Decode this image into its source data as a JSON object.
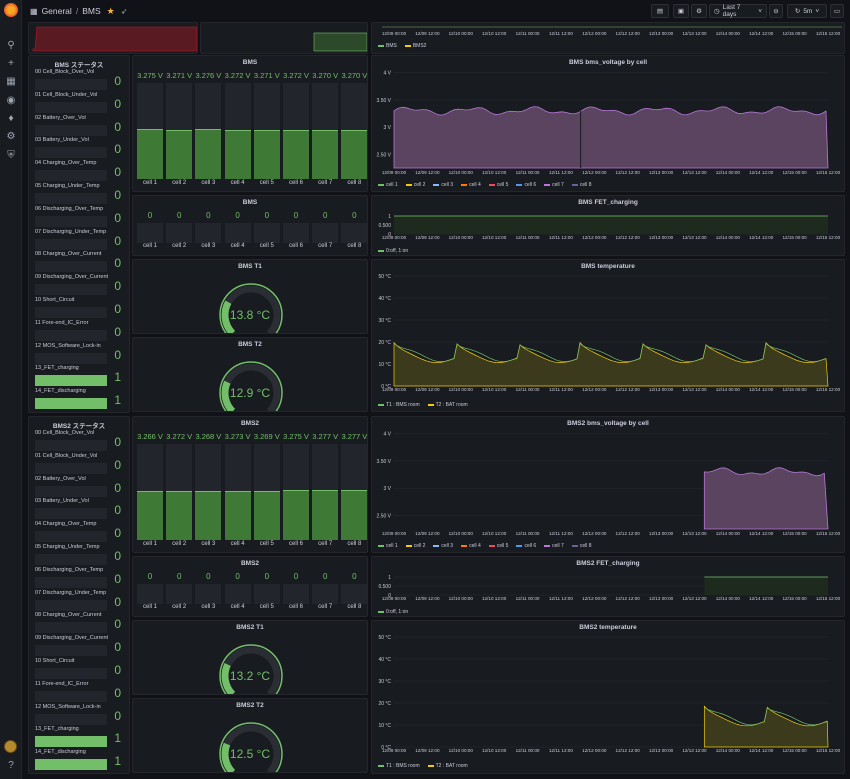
{
  "breadcrumb": {
    "folder": "General",
    "dashboard": "BMS"
  },
  "toolbar": {
    "time_range": "Last 7 days",
    "refresh": "5m"
  },
  "status_labels": [
    "00 Cell_Block_Over_Vol",
    "01 Cell_Block_Under_Vol",
    "02 Battery_Over_Vol",
    "03 Battery_Under_Vol",
    "04 Charging_Over_Temp",
    "05 Charging_Under_Temp",
    "06 Discharging_Over_Temp",
    "07 Discharging_Under_Temp",
    "08 Charging_Over_Current",
    "09 Discharging_Over_Current",
    "10 Short_Circuit",
    "11 Fore-end_IC_Error",
    "12 MOS_Software_Lock-in",
    "13_FET_charging",
    "14_FET_discharging"
  ],
  "bms1": {
    "status_title": "BMS ステータス",
    "status_values": [
      "0",
      "0",
      "0",
      "0",
      "0",
      "0",
      "0",
      "0",
      "0",
      "0",
      "0",
      "0",
      "0",
      "1",
      "1"
    ],
    "cells_title": "BMS",
    "cell_voltages": [
      "3.275 V",
      "3.271 V",
      "3.276 V",
      "3.272 V",
      "3.271 V",
      "3.272 V",
      "3.270 V",
      "3.270 V"
    ],
    "cell_names": [
      "cell 1",
      "cell 2",
      "cell 3",
      "cell 4",
      "cell 5",
      "cell 6",
      "cell 7",
      "cell 8"
    ],
    "balance_title": "BMS",
    "balance_values": [
      "0",
      "0",
      "0",
      "0",
      "0",
      "0",
      "0",
      "0"
    ],
    "t1_title": "BMS T1",
    "t1_value": "13.8 °C",
    "t2_title": "BMS T2",
    "t2_value": "12.9 °C",
    "voltage_chart_title": "BMS bms_voltage by cell",
    "fet_chart_title": "BMS FET_charging",
    "temp_chart_title": "BMS temperature"
  },
  "bms2": {
    "status_title": "BMS2 ステータス",
    "status_values": [
      "0",
      "0",
      "0",
      "0",
      "0",
      "0",
      "0",
      "0",
      "0",
      "0",
      "0",
      "0",
      "0",
      "1",
      "1"
    ],
    "cells_title": "BMS2",
    "cell_voltages": [
      "3.266 V",
      "3.272 V",
      "3.268 V",
      "3.273 V",
      "3.269 V",
      "3.275 V",
      "3.277 V",
      "3.277 V"
    ],
    "cell_names": [
      "cell 1",
      "cell 2",
      "cell 3",
      "cell 4",
      "cell 5",
      "cell 6",
      "cell 7",
      "cell 8"
    ],
    "balance_title": "BMS2",
    "balance_values": [
      "0",
      "0",
      "0",
      "0",
      "0",
      "0",
      "0",
      "0"
    ],
    "t1_title": "BMS2 T1",
    "t1_value": "13.2 °C",
    "t2_title": "BMS2 T2",
    "t2_value": "12.5 °C",
    "voltage_chart_title": "BMS2 bms_voltage by cell",
    "fet_chart_title": "BMS2 FET_charging",
    "temp_chart_title": "BMS2 temperature"
  },
  "x_ticks": [
    "12/09 00:00",
    "12/09 12:00",
    "12/10 00:00",
    "12/10 12:00",
    "12/11 00:00",
    "12/11 12:00",
    "12/12 00:00",
    "12/12 12:00",
    "12/13 00:00",
    "12/13 12:00",
    "12/14 00:00",
    "12/14 12:00",
    "12/15 00:00",
    "12/15 12:00"
  ],
  "voltage_ticks": [
    "4 V",
    "3.50 V",
    "3 V",
    "2.50 V"
  ],
  "fet_ticks": [
    "1",
    "0.500",
    "0"
  ],
  "temp_ticks": [
    "50 °C",
    "40 °C",
    "30 °C",
    "20 °C",
    "10 °C",
    "0 °C"
  ],
  "cell_legend": [
    "cell 1",
    "cell 2",
    "cell 3",
    "cell 4",
    "cell 5",
    "cell 6",
    "cell 7",
    "cell 8"
  ],
  "cell_legend_colors": [
    "#73bf69",
    "#f2cc0c",
    "#8ab8ff",
    "#ff780a",
    "#f2495c",
    "#5794f2",
    "#b877d9",
    "#705da0"
  ],
  "fet_legend": "0:off, 1:on",
  "temp_legend": [
    "T1 : BMS room",
    "T2 : BAT room"
  ],
  "top_legend": [
    "BMS",
    "BMS2"
  ],
  "colors": {
    "green": "#73bf69",
    "yellow": "#f2cc0c",
    "purple": "#9b7bb5",
    "red": "#c4162a"
  }
}
